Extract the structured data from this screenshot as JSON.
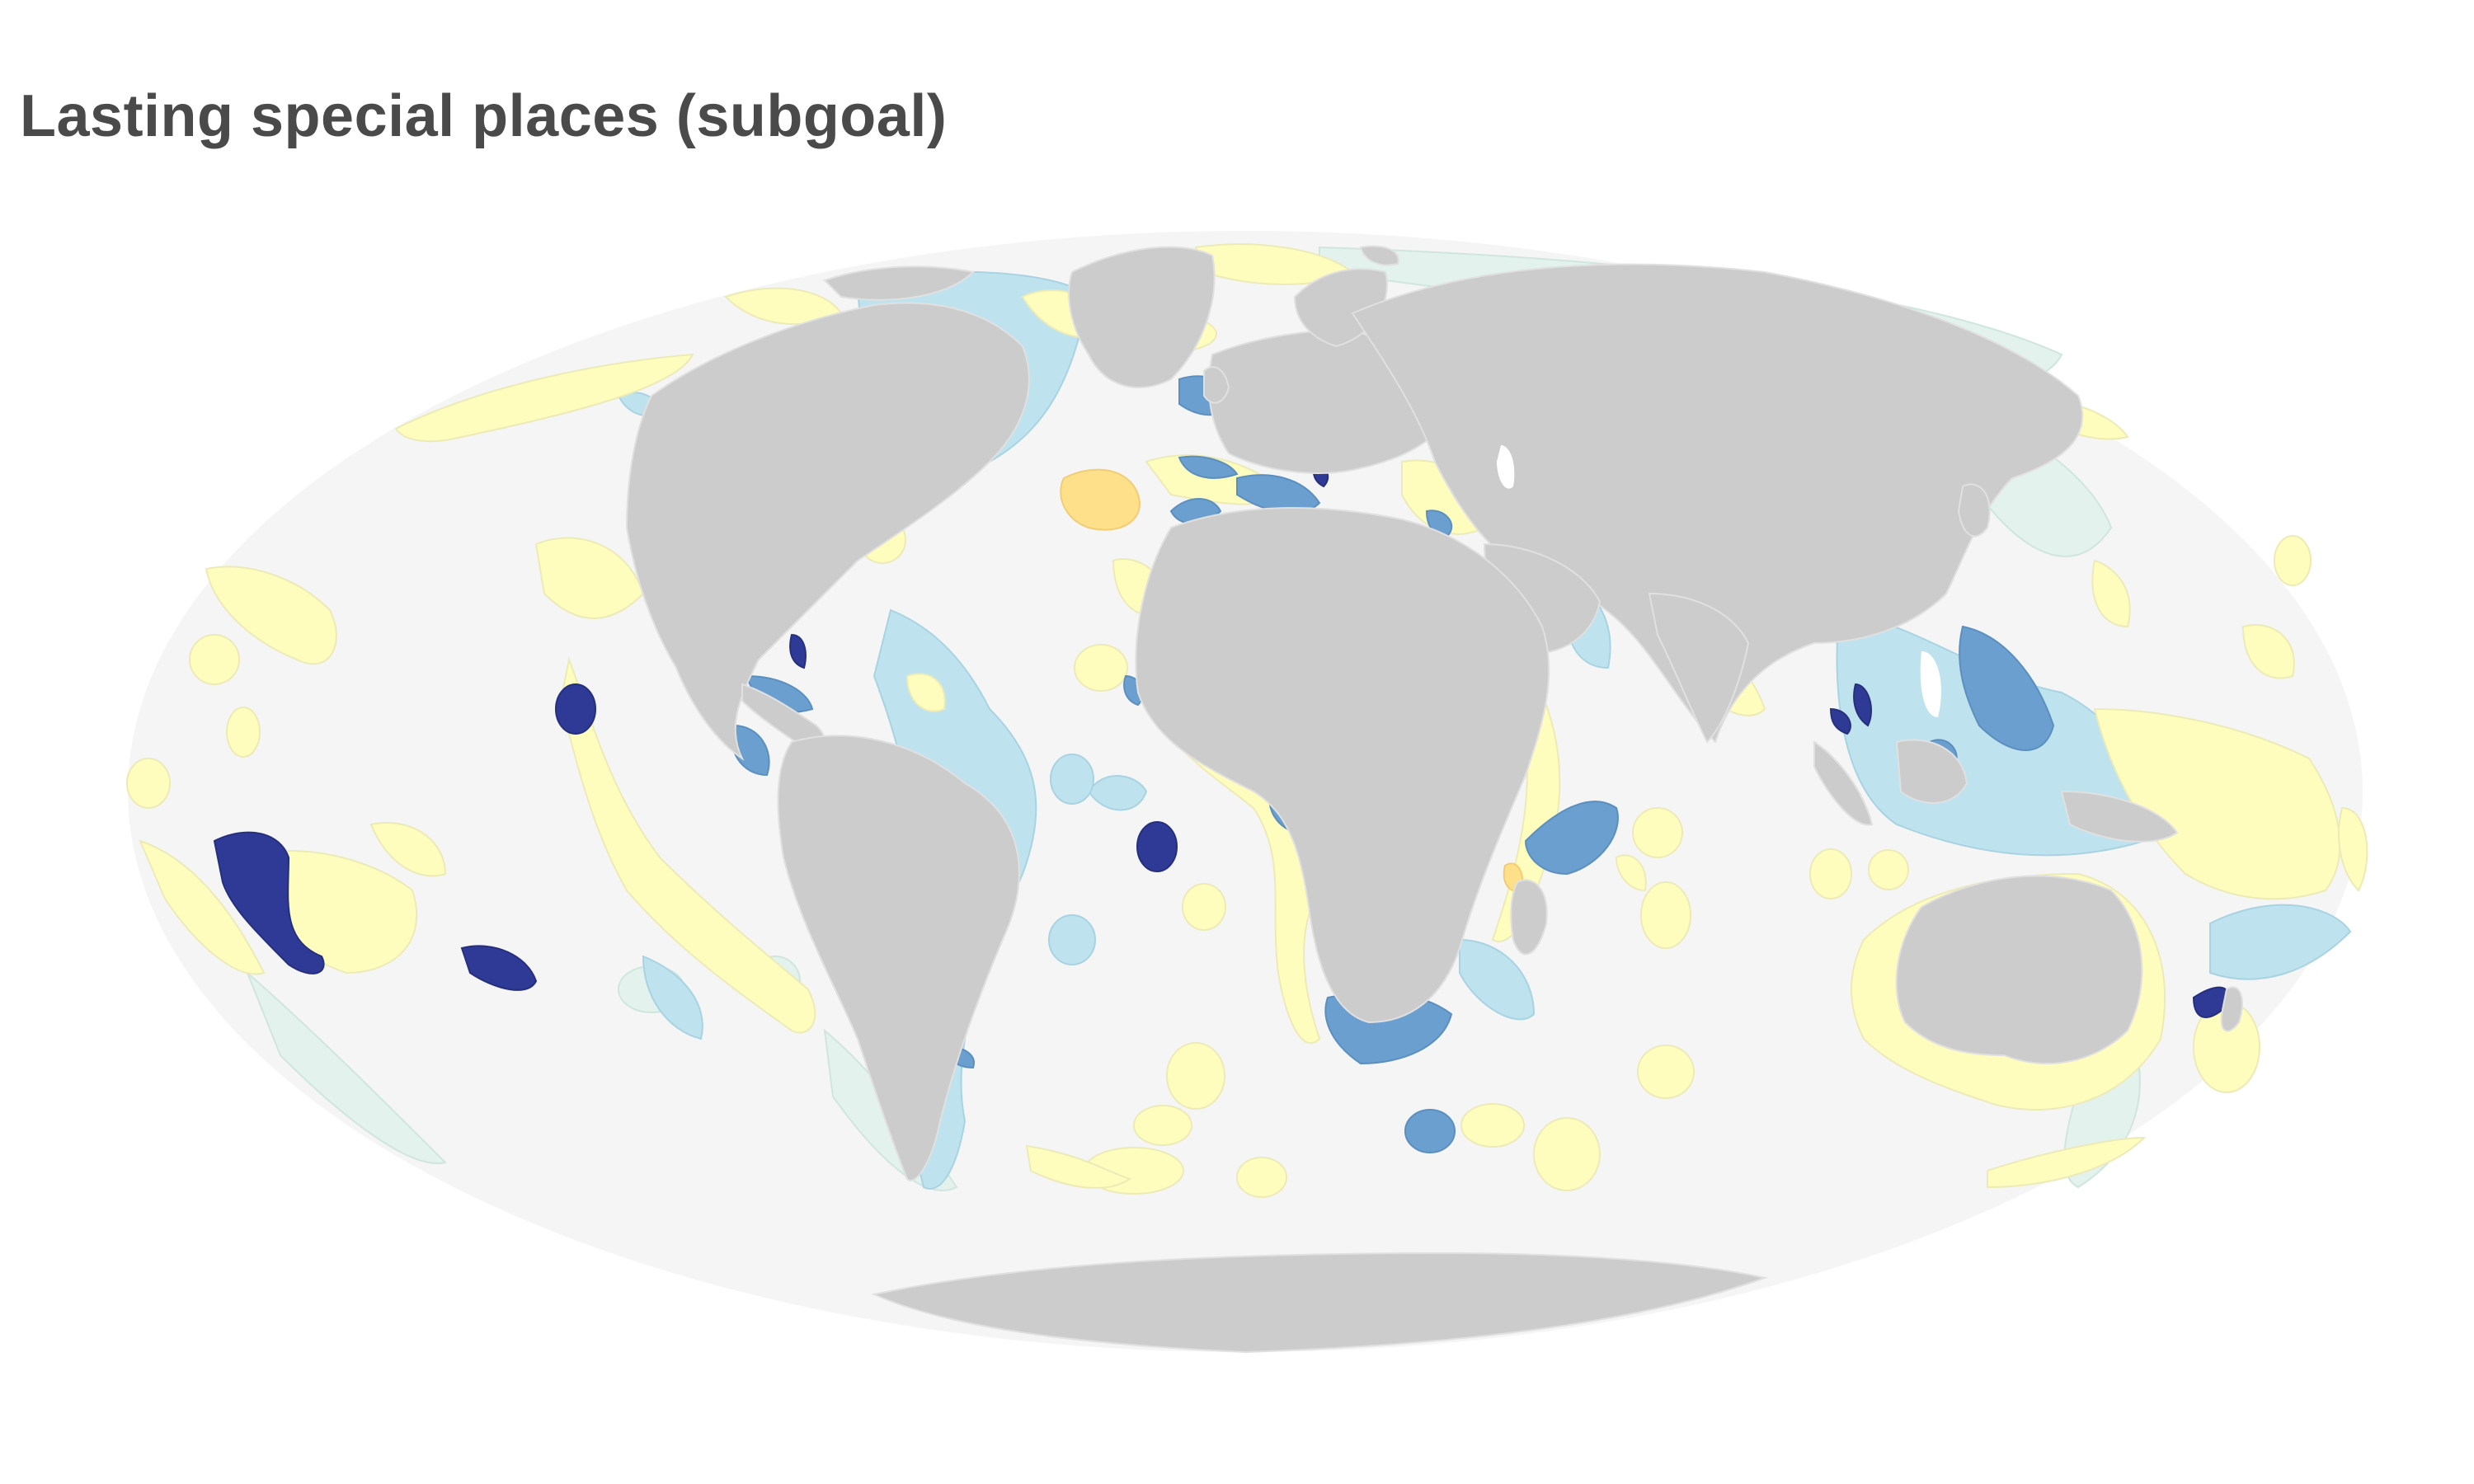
{
  "title": "Lasting special places (subgoal)",
  "map": {
    "projection": "mollweide",
    "ocean_color": "#f5f5f5",
    "land_color": "#cccccc",
    "land_stroke": "#e0e0e0",
    "legend": "none",
    "color_scale": [
      "#fffdbe",
      "#ffe08a",
      "#e3f2ed",
      "#bfe3ee",
      "#6a9fcf",
      "#2e3a96"
    ]
  }
}
